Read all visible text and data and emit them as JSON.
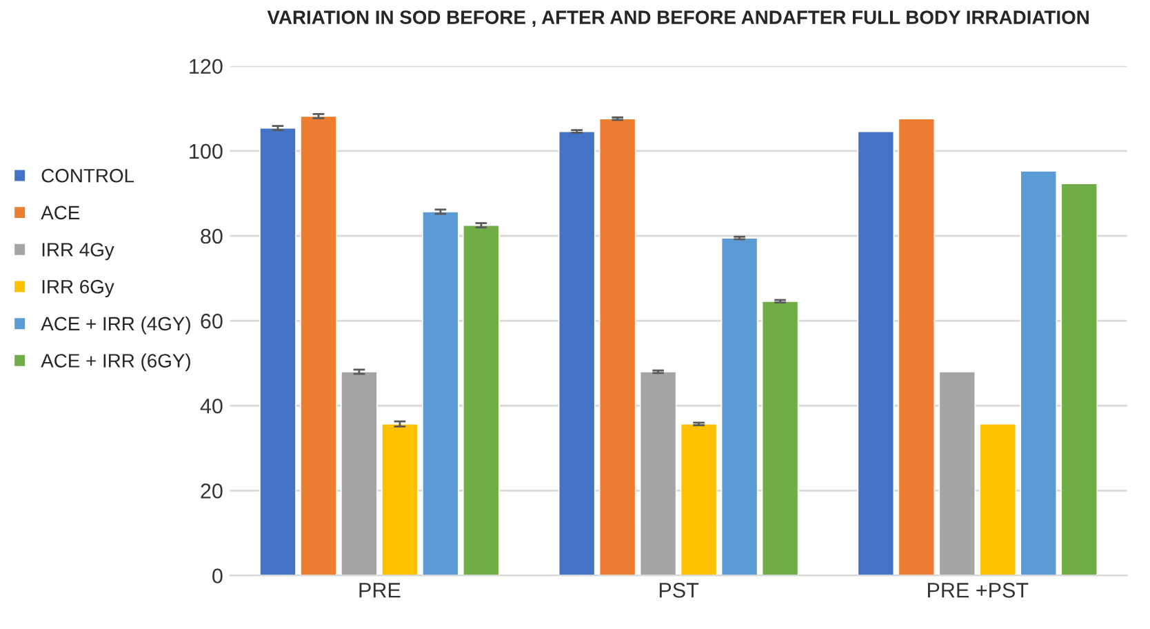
{
  "chart_data": {
    "type": "bar",
    "title": "VARIATION IN SOD BEFORE , AFTER AND BEFORE ANDAFTER FULL BODY IRRADIATION",
    "categories": [
      "PRE",
      "PST",
      "PRE +PST"
    ],
    "series": [
      {
        "name": "CONTROL",
        "color": "#4472c4",
        "values": [
          105.4,
          104.6,
          104.6
        ],
        "errors": [
          0.5,
          0.3,
          null
        ]
      },
      {
        "name": "ACE",
        "color": "#ed7d31",
        "values": [
          108.2,
          107.6,
          107.6
        ],
        "errors": [
          0.5,
          0.3,
          null
        ]
      },
      {
        "name": "IRR 4Gy",
        "color": "#a5a5a5",
        "values": [
          48.0,
          48.0,
          48.0
        ],
        "errors": [
          0.5,
          0.3,
          null
        ]
      },
      {
        "name": "IRR 6Gy",
        "color": "#ffc000",
        "values": [
          35.7,
          35.7,
          35.7
        ],
        "errors": [
          0.6,
          0.3,
          null
        ]
      },
      {
        "name": "ACE + IRR (4GY)",
        "color": "#5b9bd5",
        "values": [
          85.7,
          79.5,
          95.3
        ],
        "errors": [
          0.5,
          0.3,
          null
        ]
      },
      {
        "name": "ACE + IRR (6GY)",
        "color": "#70ad47",
        "values": [
          82.5,
          64.6,
          92.3
        ],
        "errors": [
          0.5,
          0.3,
          null
        ]
      }
    ],
    "ylim": [
      0,
      120
    ],
    "yticks": [
      0,
      20,
      40,
      60,
      80,
      100,
      120
    ],
    "grid": "y",
    "legend": "left"
  }
}
